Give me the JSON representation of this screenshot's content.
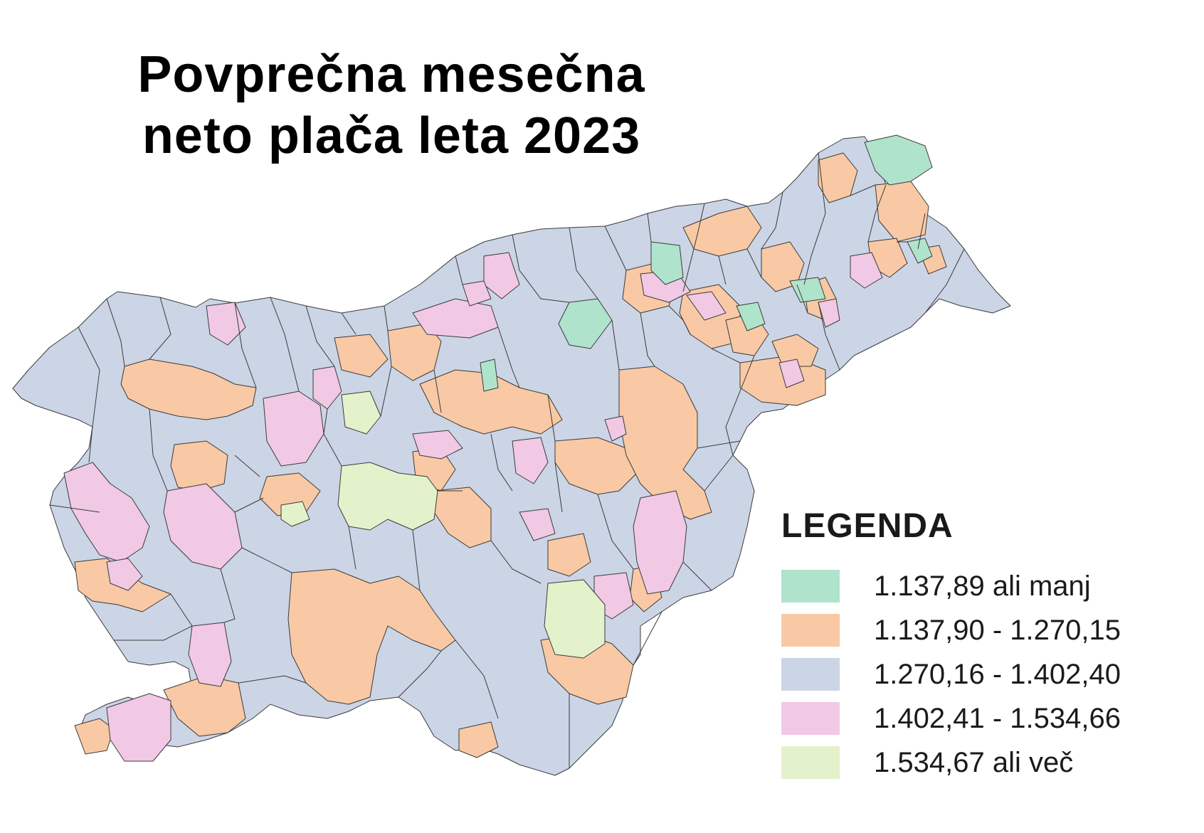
{
  "title": {
    "line1": "Povprečna mesečna",
    "line2": "neto plača leta 2023"
  },
  "legend": {
    "title": "LEGENDA",
    "classes": [
      {
        "label": "1.137,89 ali manj",
        "color": "#b0e3cc"
      },
      {
        "label": "1.137,90 - 1.270,15",
        "color": "#f8c9a4"
      },
      {
        "label": "1.270,16 - 1.402,40",
        "color": "#ccd5e6"
      },
      {
        "label": "1.402,41 - 1.534,66",
        "color": "#f1c9e4"
      },
      {
        "label": "1.534,67 ali več",
        "color": "#e3f2cb"
      }
    ]
  },
  "map": {
    "border_color": "#3a3a3a"
  }
}
